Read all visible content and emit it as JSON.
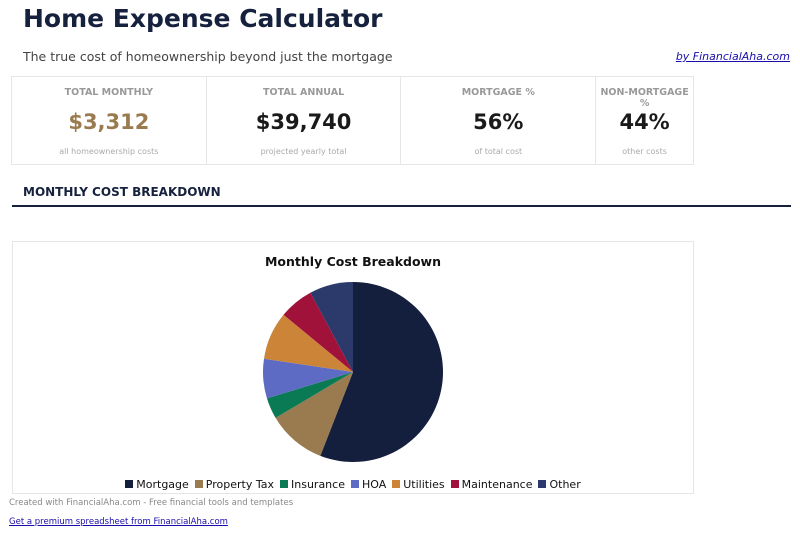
{
  "header": {
    "title": "Home Expense Calculator",
    "subtitle": "The true cost of homeownership beyond just the mortgage",
    "byline": "by FinancialAha.com"
  },
  "cards": [
    {
      "label": "TOTAL MONTHLY",
      "value": "$3,312",
      "sub": "all homeownership costs",
      "color": "#9a7b4f"
    },
    {
      "label": "TOTAL ANNUAL",
      "value": "$39,740",
      "sub": "projected yearly total",
      "color": "#1a1a1a"
    },
    {
      "label": "MORTGAGE %",
      "value": "56%",
      "sub": "of total cost",
      "color": "#1a1a1a"
    },
    {
      "label": "NON-MORTGAGE %",
      "value": "44%",
      "sub": "other costs",
      "color": "#1a1a1a"
    }
  ],
  "section_title": "MONTHLY COST BREAKDOWN",
  "chart_data": {
    "type": "pie",
    "title": "Monthly Cost Breakdown",
    "legend": "bottom",
    "categories": [
      "Mortgage",
      "Property Tax",
      "Insurance",
      "HOA",
      "Utilities",
      "Maintenance",
      "Other"
    ],
    "values": [
      1852,
      350,
      125,
      235,
      285,
      205,
      260
    ],
    "colors": [
      "#141f3d",
      "#9a7b4f",
      "#0a7a55",
      "#5d6bc4",
      "#cc8538",
      "#a0123a",
      "#2b3a6b"
    ]
  },
  "footer": {
    "credit": "Created with FinancialAha.com - Free financial tools and templates",
    "link": "Get a premium spreadsheet from FinancialAha.com"
  }
}
